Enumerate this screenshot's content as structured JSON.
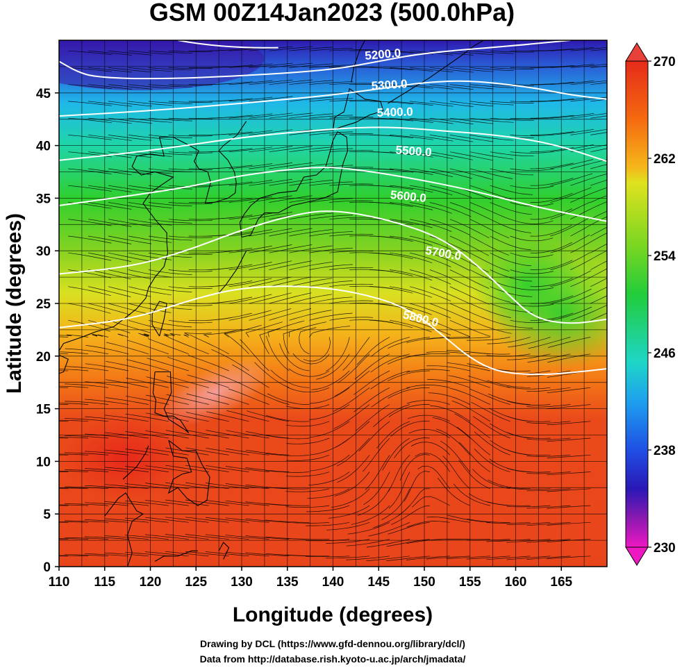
{
  "title": "GSM 00Z14Jan2023 (500.0hPa)",
  "xlabel": "Longitude (degrees)",
  "ylabel": "Latitude  (degrees)",
  "x_ticks": [
    "110",
    "115",
    "120",
    "125",
    "130",
    "135",
    "140",
    "145",
    "150",
    "155",
    "160",
    "165"
  ],
  "y_ticks": [
    "0",
    "5",
    "10",
    "15",
    "20",
    "25",
    "30",
    "35",
    "40",
    "45"
  ],
  "colorbar": {
    "labels": [
      "270",
      "262",
      "254",
      "246",
      "238",
      "230"
    ],
    "values": [
      270,
      262,
      254,
      246,
      238,
      230
    ],
    "min": 230,
    "max": 270
  },
  "contours": [
    {
      "label": "5200.0",
      "value": 5200
    },
    {
      "label": "5300.0",
      "value": 5300
    },
    {
      "label": "5400.0",
      "value": 5400
    },
    {
      "label": "5500.0",
      "value": 5500
    },
    {
      "label": "5600.0",
      "value": 5600
    },
    {
      "label": "5700.0",
      "value": 5700
    },
    {
      "label": "5800.0",
      "value": 5800
    }
  ],
  "credits": {
    "line1": "Drawing by DCL (https://www.gfd-dennou.org/library/dcl/)",
    "line2": "Data from http://database.rish.kyoto-u.ac.jp/arch/jmadata/"
  },
  "chart_data": {
    "type": "heatmap",
    "title": "GSM 00Z14Jan2023 (500.0hPa)",
    "xlabel": "Longitude (degrees)",
    "ylabel": "Latitude  (degrees)",
    "xlim": [
      110,
      170
    ],
    "ylim": [
      0,
      50
    ],
    "colorbar_range": [
      230,
      270
    ],
    "contour_levels": [
      5200,
      5300,
      5400,
      5500,
      5600,
      5700,
      5800
    ],
    "grid": true
  },
  "colors": {
    "map_red": "#e8391c",
    "map_orange": "#f7a21a",
    "map_yellow": "#e6e321",
    "map_green": "#2bcf2e",
    "map_cyan": "#1fd6d6",
    "map_blue": "#1f6fe8",
    "map_purple": "#6a1bb8"
  }
}
